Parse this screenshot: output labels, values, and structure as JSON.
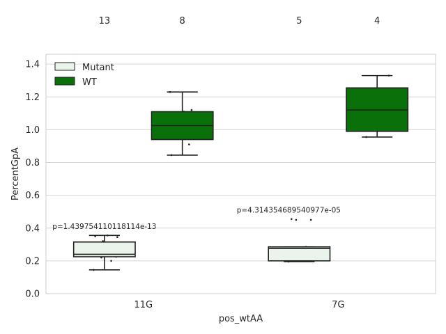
{
  "chart_data": {
    "type": "box",
    "xlabel": "pos_wtAA",
    "ylabel": "PercentGpA",
    "categories": [
      "11G",
      "7G"
    ],
    "ylim": [
      0.0,
      1.46
    ],
    "yticks": [
      0.0,
      0.2,
      0.4,
      0.6,
      0.8,
      1.0,
      1.2,
      1.4
    ],
    "grid": "horizontal",
    "legend_position": "top-left",
    "colors": {
      "Mutant": "#eaf4ea",
      "WT": "#0a700a",
      "edge": "#222222",
      "grid": "#d6d6d6"
    },
    "series": [
      {
        "name": "Mutant",
        "boxes": [
          {
            "category": "11G",
            "whisker_low": 0.145,
            "q1": 0.225,
            "median": 0.24,
            "q3": 0.315,
            "whisker_high": 0.355,
            "points": [
              0.145,
              0.2,
              0.22,
              0.225,
              0.23,
              0.24,
              0.24,
              0.26,
              0.29,
              0.32,
              0.345,
              0.35,
              0.355
            ]
          },
          {
            "category": "7G",
            "whisker_low": 0.195,
            "q1": 0.2,
            "median": 0.275,
            "q3": 0.285,
            "whisker_high": 0.285,
            "points": [
              0.195,
              0.285,
              0.45,
              0.45,
              0.455
            ]
          }
        ]
      },
      {
        "name": "WT",
        "boxes": [
          {
            "category": "11G",
            "whisker_low": 0.845,
            "q1": 0.94,
            "median": 1.025,
            "q3": 1.11,
            "whisker_high": 1.23,
            "points": [
              0.845,
              0.91,
              0.96,
              1.005,
              1.05,
              1.11,
              1.12,
              1.23
            ]
          },
          {
            "category": "7G",
            "whisker_low": 0.955,
            "q1": 0.99,
            "median": 1.12,
            "q3": 1.255,
            "whisker_high": 1.33,
            "points": [
              0.955,
              1.01,
              1.235,
              1.33
            ]
          }
        ]
      }
    ],
    "counts": [
      {
        "category": "11G",
        "series": "Mutant",
        "n": "13"
      },
      {
        "category": "11G",
        "series": "WT",
        "n": "8"
      },
      {
        "category": "7G",
        "series": "Mutant",
        "n": "5"
      },
      {
        "category": "7G",
        "series": "WT",
        "n": "4"
      }
    ],
    "annotations": [
      {
        "category": "11G",
        "y": 0.41,
        "text": "p=1.439754110118114e-13"
      },
      {
        "category": "7G",
        "y": 0.51,
        "text": "p=4.314354689540977e-05"
      }
    ]
  }
}
